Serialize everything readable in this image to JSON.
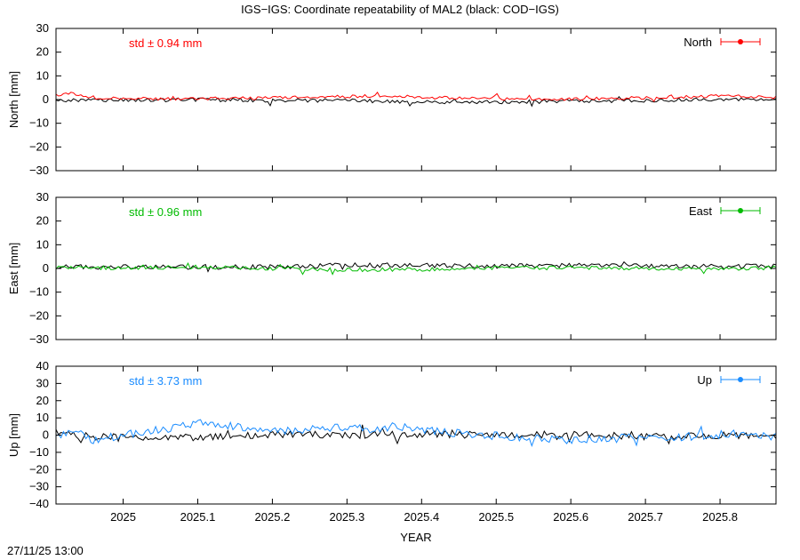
{
  "title": "IGS−IGS: Coordinate repeatability of MAL2 (black: COD−IGS)",
  "timestamp": "27/11/25 13:00",
  "chart_data": [
    {
      "type": "line",
      "component": "North",
      "ylabel": "North [mm]",
      "xlabel": "",
      "ylim": [
        -30,
        30
      ],
      "yticks": [
        -30,
        -20,
        -10,
        0,
        10,
        20,
        30
      ],
      "xlim": [
        2024.91,
        2025.875
      ],
      "xticks": [
        2025,
        2025.1,
        2025.2,
        2025.3,
        2025.4,
        2025.5,
        2025.6,
        2025.7,
        2025.8
      ],
      "std_label": "std ± 0.94 mm",
      "legend": "North",
      "legend_position": "top-right",
      "color": "#ff0000",
      "reference_color": "#000000",
      "series": [
        {
          "name": "North",
          "color": "#ff0000",
          "anchors": [
            [
              2024.91,
              2.0
            ],
            [
              2024.93,
              2.5
            ],
            [
              2024.96,
              1.0
            ],
            [
              2025.0,
              0.4
            ],
            [
              2025.06,
              0.2
            ],
            [
              2025.12,
              0.4
            ],
            [
              2025.18,
              0.6
            ],
            [
              2025.24,
              0.9
            ],
            [
              2025.3,
              1.4
            ],
            [
              2025.36,
              1.6
            ],
            [
              2025.42,
              0.8
            ],
            [
              2025.48,
              0.3
            ],
            [
              2025.54,
              0.2
            ],
            [
              2025.6,
              0.3
            ],
            [
              2025.66,
              0.5
            ],
            [
              2025.72,
              0.8
            ],
            [
              2025.78,
              1.3
            ],
            [
              2025.82,
              1.5
            ],
            [
              2025.875,
              0.8
            ]
          ],
          "noise": 0.7
        },
        {
          "name": "COD",
          "color": "#000000",
          "anchors": [
            [
              2024.91,
              -0.5
            ],
            [
              2025.0,
              -0.2
            ],
            [
              2025.1,
              -0.1
            ],
            [
              2025.2,
              -0.3
            ],
            [
              2025.3,
              -0.4
            ],
            [
              2025.4,
              -1.0
            ],
            [
              2025.5,
              -0.9
            ],
            [
              2025.6,
              -0.6
            ],
            [
              2025.7,
              -0.4
            ],
            [
              2025.8,
              0.2
            ],
            [
              2025.875,
              0.3
            ]
          ],
          "noise": 0.8
        }
      ]
    },
    {
      "type": "line",
      "component": "East",
      "ylabel": "East [mm]",
      "xlabel": "",
      "ylim": [
        -30,
        30
      ],
      "yticks": [
        -30,
        -20,
        -10,
        0,
        10,
        20,
        30
      ],
      "xlim": [
        2024.91,
        2025.875
      ],
      "xticks": [
        2025,
        2025.1,
        2025.2,
        2025.3,
        2025.4,
        2025.5,
        2025.6,
        2025.7,
        2025.8
      ],
      "std_label": "std ± 0.96 mm",
      "legend": "East",
      "legend_position": "top-right",
      "color": "#00bb00",
      "reference_color": "#000000",
      "series": [
        {
          "name": "East",
          "color": "#00bb00",
          "anchors": [
            [
              2024.91,
              0.5
            ],
            [
              2025.0,
              0.2
            ],
            [
              2025.1,
              0.6
            ],
            [
              2025.2,
              0.0
            ],
            [
              2025.3,
              -0.6
            ],
            [
              2025.4,
              -0.4
            ],
            [
              2025.5,
              0.3
            ],
            [
              2025.6,
              0.2
            ],
            [
              2025.7,
              0.1
            ],
            [
              2025.8,
              -0.2
            ],
            [
              2025.875,
              0.3
            ]
          ],
          "noise": 0.8
        },
        {
          "name": "COD",
          "color": "#000000",
          "anchors": [
            [
              2024.91,
              0.8
            ],
            [
              2025.0,
              0.6
            ],
            [
              2025.1,
              0.5
            ],
            [
              2025.2,
              0.6
            ],
            [
              2025.3,
              1.4
            ],
            [
              2025.4,
              1.3
            ],
            [
              2025.5,
              0.9
            ],
            [
              2025.6,
              1.4
            ],
            [
              2025.7,
              0.9
            ],
            [
              2025.8,
              0.8
            ],
            [
              2025.875,
              1.0
            ]
          ],
          "noise": 1.0
        }
      ]
    },
    {
      "type": "line",
      "component": "Up",
      "ylabel": "Up [mm]",
      "xlabel": "YEAR",
      "ylim": [
        -40,
        40
      ],
      "yticks": [
        -40,
        -30,
        -20,
        -10,
        0,
        10,
        20,
        30,
        40
      ],
      "xlim": [
        2024.91,
        2025.875
      ],
      "xticks": [
        2025,
        2025.1,
        2025.2,
        2025.3,
        2025.4,
        2025.5,
        2025.6,
        2025.7,
        2025.8
      ],
      "std_label": "std ± 3.73 mm",
      "legend": "Up",
      "legend_position": "top-right",
      "color": "#1a8cff",
      "reference_color": "#000000",
      "series": [
        {
          "name": "Up",
          "color": "#1a8cff",
          "anchors": [
            [
              2024.91,
              0.0
            ],
            [
              2024.94,
              2.0
            ],
            [
              2024.96,
              -3.0
            ],
            [
              2025.0,
              0.0
            ],
            [
              2025.04,
              3.0
            ],
            [
              2025.08,
              5.0
            ],
            [
              2025.1,
              7.0
            ],
            [
              2025.13,
              6.5
            ],
            [
              2025.16,
              4.0
            ],
            [
              2025.2,
              2.5
            ],
            [
              2025.24,
              3.0
            ],
            [
              2025.27,
              4.5
            ],
            [
              2025.3,
              5.0
            ],
            [
              2025.33,
              3.0
            ],
            [
              2025.36,
              5.0
            ],
            [
              2025.39,
              4.0
            ],
            [
              2025.42,
              2.0
            ],
            [
              2025.46,
              0.5
            ],
            [
              2025.5,
              -0.5
            ],
            [
              2025.55,
              -2.0
            ],
            [
              2025.6,
              -2.5
            ],
            [
              2025.65,
              -2.0
            ],
            [
              2025.7,
              -1.5
            ],
            [
              2025.75,
              -1.0
            ],
            [
              2025.8,
              0.5
            ],
            [
              2025.84,
              1.0
            ],
            [
              2025.875,
              -1.0
            ]
          ],
          "noise": 2.5
        },
        {
          "name": "COD",
          "color": "#000000",
          "anchors": [
            [
              2024.91,
              0.0
            ],
            [
              2025.0,
              -1.0
            ],
            [
              2025.1,
              -1.5
            ],
            [
              2025.2,
              0.5
            ],
            [
              2025.3,
              0.0
            ],
            [
              2025.4,
              0.5
            ],
            [
              2025.5,
              0.0
            ],
            [
              2025.6,
              0.5
            ],
            [
              2025.7,
              -1.0
            ],
            [
              2025.8,
              0.0
            ],
            [
              2025.875,
              -1.0
            ]
          ],
          "noise": 2.0
        }
      ]
    }
  ]
}
